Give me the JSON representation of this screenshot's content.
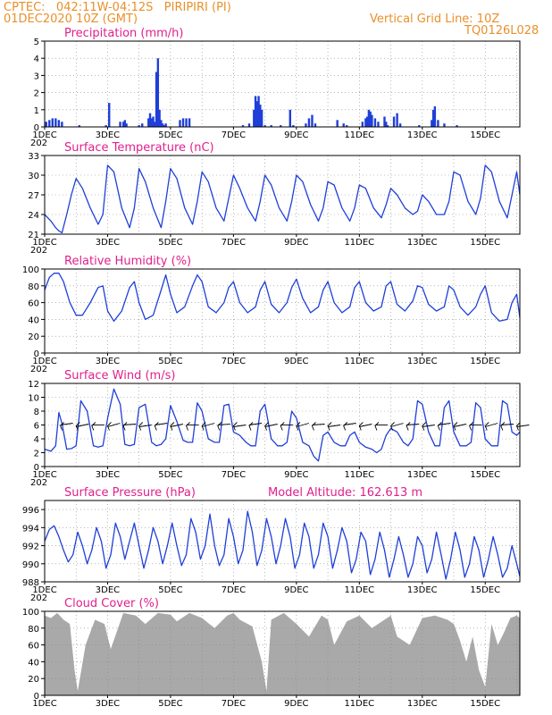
{
  "header": {
    "line1": "CPTEC:   042:11W-04:12S   PIRIPIRI (PI)",
    "line2": "01DEC2020 10Z (GMT)",
    "grid_label": "Vertical Grid Line: 10Z",
    "code": "TQ0126L028"
  },
  "colors": {
    "line": "#1f3fd8",
    "cloud": "#a9a9a9",
    "title": "#e0208c",
    "header": "#e8902a"
  },
  "x_axis": {
    "range_days": [
      0,
      15.1
    ],
    "ticks": [
      {
        "day": 0,
        "label": "1DEC"
      },
      {
        "day": 2,
        "label": "3DEC"
      },
      {
        "day": 4,
        "label": "5DEC"
      },
      {
        "day": 6,
        "label": "7DEC"
      },
      {
        "day": 8,
        "label": "9DEC"
      },
      {
        "day": 10,
        "label": "11DEC"
      },
      {
        "day": 12,
        "label": "13DEC"
      },
      {
        "day": 14,
        "label": "15DEC"
      }
    ],
    "year_stub": "202"
  },
  "chart_data": [
    {
      "type": "bar",
      "title": "Precipitation (mm/h)",
      "ylim": [
        0,
        5
      ],
      "yticks": [
        0,
        1,
        2,
        3,
        4,
        5
      ],
      "x": [
        0.05,
        0.15,
        0.25,
        0.35,
        0.45,
        0.55,
        1.1,
        1.95,
        2.05,
        2.4,
        2.5,
        2.55,
        2.6,
        3.0,
        3.1,
        3.3,
        3.35,
        3.4,
        3.45,
        3.5,
        3.55,
        3.6,
        3.65,
        3.7,
        3.75,
        3.8,
        3.85,
        4.3,
        4.4,
        4.5,
        4.6,
        6.3,
        6.5,
        6.65,
        6.7,
        6.75,
        6.8,
        6.85,
        6.9,
        7.0,
        7.2,
        7.5,
        7.8,
        7.9,
        8.3,
        8.4,
        8.5,
        8.6,
        9.3,
        9.5,
        9.6,
        10.1,
        10.2,
        10.25,
        10.3,
        10.35,
        10.4,
        10.5,
        10.6,
        10.8,
        10.85,
        10.9,
        11.1,
        11.2,
        11.3,
        11.9,
        12.3,
        12.35,
        12.4,
        12.5,
        12.7,
        13.1
      ],
      "values": [
        0.3,
        0.4,
        0.5,
        0.5,
        0.4,
        0.3,
        0.1,
        0.1,
        1.4,
        0.3,
        0.3,
        0.4,
        0.2,
        0.1,
        0.2,
        0.5,
        0.8,
        0.5,
        0.6,
        0.3,
        3.2,
        4.0,
        1.0,
        0.4,
        0.2,
        0.1,
        0.2,
        0.4,
        0.5,
        0.5,
        0.5,
        0.1,
        0.2,
        1.0,
        1.8,
        1.5,
        1.8,
        1.3,
        1.0,
        0.1,
        0.1,
        0.1,
        1.0,
        0.1,
        0.2,
        0.5,
        0.7,
        0.2,
        0.4,
        0.2,
        0.1,
        0.3,
        0.5,
        0.6,
        1.0,
        0.9,
        0.7,
        0.5,
        0.3,
        0.6,
        0.3,
        0.1,
        0.6,
        0.8,
        0.2,
        0.1,
        0.4,
        1.0,
        1.2,
        0.4,
        0.2,
        0.1
      ],
      "xlabel": "",
      "ylabel": ""
    },
    {
      "type": "line",
      "title": "Surface Temperature (nC)",
      "ylim": [
        21,
        33
      ],
      "yticks": [
        21,
        24,
        27,
        30,
        33
      ],
      "x": [
        0,
        0.2,
        0.35,
        0.45,
        0.55,
        0.7,
        0.85,
        1.0,
        1.2,
        1.45,
        1.7,
        1.85,
        2.0,
        2.2,
        2.45,
        2.7,
        2.85,
        3.0,
        3.2,
        3.45,
        3.7,
        3.85,
        4.0,
        4.2,
        4.45,
        4.7,
        4.85,
        5.0,
        5.2,
        5.45,
        5.7,
        5.85,
        6.0,
        6.2,
        6.45,
        6.7,
        6.85,
        7.0,
        7.2,
        7.45,
        7.7,
        7.85,
        8.0,
        8.2,
        8.45,
        8.7,
        8.85,
        9.0,
        9.2,
        9.45,
        9.7,
        9.85,
        10.0,
        10.2,
        10.45,
        10.7,
        10.85,
        11.0,
        11.2,
        11.45,
        11.7,
        11.85,
        12.0,
        12.2,
        12.45,
        12.7,
        12.85,
        13.0,
        13.2,
        13.45,
        13.7,
        13.85,
        14.0,
        14.2,
        14.45,
        14.7,
        14.85,
        15.0,
        15.1
      ],
      "values": [
        24,
        23,
        22,
        21.5,
        21.2,
        24,
        27,
        29.5,
        28,
        25,
        22.5,
        24,
        31.5,
        30.5,
        25,
        22,
        25,
        31,
        29,
        25,
        22,
        26,
        31,
        29.5,
        25,
        22.5,
        26,
        30.5,
        29,
        25,
        23,
        26.5,
        30,
        28,
        25,
        23,
        26,
        30,
        28.5,
        25,
        23,
        26,
        30,
        29,
        25.5,
        23,
        25,
        29,
        28.5,
        25,
        23,
        25,
        28.5,
        28,
        25,
        23.5,
        25.5,
        28,
        27,
        25,
        24,
        24.5,
        27,
        26,
        24,
        24,
        26,
        30.5,
        30,
        26,
        24,
        26.5,
        31.5,
        30.5,
        26,
        23.5,
        27,
        30.5,
        27
      ],
      "xlabel": "",
      "ylabel": ""
    },
    {
      "type": "line",
      "title": "Relative Humidity (%)",
      "ylim": [
        0,
        100
      ],
      "yticks": [
        0,
        20,
        40,
        60,
        80,
        100
      ],
      "x": [
        0,
        0.15,
        0.3,
        0.45,
        0.6,
        0.8,
        1.0,
        1.2,
        1.45,
        1.7,
        1.85,
        2.0,
        2.2,
        2.45,
        2.7,
        2.85,
        3.0,
        3.2,
        3.45,
        3.7,
        3.85,
        4.0,
        4.2,
        4.45,
        4.7,
        4.85,
        5.0,
        5.2,
        5.45,
        5.7,
        5.85,
        6.0,
        6.2,
        6.45,
        6.7,
        6.85,
        7.0,
        7.2,
        7.45,
        7.7,
        7.85,
        8.0,
        8.2,
        8.45,
        8.7,
        8.85,
        9.0,
        9.2,
        9.45,
        9.7,
        9.85,
        10.0,
        10.2,
        10.45,
        10.7,
        10.85,
        11.0,
        11.2,
        11.45,
        11.7,
        11.85,
        12.0,
        12.2,
        12.45,
        12.7,
        12.85,
        13.0,
        13.2,
        13.45,
        13.7,
        13.85,
        14.0,
        14.2,
        14.45,
        14.7,
        14.85,
        15.0,
        15.1
      ],
      "values": [
        75,
        90,
        95,
        95,
        85,
        60,
        45,
        45,
        60,
        78,
        80,
        50,
        38,
        50,
        78,
        85,
        60,
        40,
        45,
        75,
        93,
        70,
        48,
        55,
        80,
        93,
        85,
        55,
        48,
        60,
        78,
        85,
        60,
        48,
        55,
        75,
        85,
        58,
        48,
        60,
        78,
        88,
        65,
        48,
        55,
        75,
        85,
        60,
        48,
        55,
        78,
        85,
        60,
        50,
        55,
        80,
        85,
        58,
        50,
        62,
        80,
        78,
        58,
        50,
        55,
        80,
        75,
        55,
        45,
        55,
        70,
        80,
        48,
        38,
        40,
        60,
        70,
        42
      ],
      "xlabel": "",
      "ylabel": ""
    },
    {
      "type": "line",
      "title": "Surface Wind (m/s)",
      "ylim": [
        0,
        12
      ],
      "yticks": [
        0,
        2,
        4,
        6,
        8,
        10,
        12
      ],
      "x": [
        0,
        0.2,
        0.35,
        0.45,
        0.55,
        0.7,
        0.85,
        1.0,
        1.15,
        1.35,
        1.55,
        1.7,
        1.85,
        2.0,
        2.2,
        2.4,
        2.55,
        2.7,
        2.85,
        3.0,
        3.2,
        3.4,
        3.55,
        3.7,
        3.85,
        4.0,
        4.2,
        4.4,
        4.55,
        4.7,
        4.85,
        5.0,
        5.2,
        5.4,
        5.55,
        5.7,
        5.85,
        6.0,
        6.2,
        6.4,
        6.55,
        6.7,
        6.85,
        7.0,
        7.2,
        7.4,
        7.55,
        7.7,
        7.85,
        8.0,
        8.2,
        8.4,
        8.55,
        8.7,
        8.85,
        9.0,
        9.2,
        9.4,
        9.55,
        9.7,
        9.85,
        10.0,
        10.2,
        10.4,
        10.55,
        10.7,
        10.85,
        11.0,
        11.2,
        11.4,
        11.55,
        11.7,
        11.85,
        12.0,
        12.2,
        12.4,
        12.55,
        12.7,
        12.85,
        13.0,
        13.2,
        13.4,
        13.55,
        13.7,
        13.85,
        14.0,
        14.2,
        14.4,
        14.55,
        14.7,
        14.85,
        15.0,
        15.1
      ],
      "values": [
        2.5,
        2.2,
        3.0,
        7.8,
        6.2,
        2.5,
        2.6,
        3.0,
        9.5,
        8.0,
        3.0,
        2.8,
        3.0,
        7.0,
        11.2,
        9.0,
        3.2,
        3.0,
        3.2,
        8.5,
        9.0,
        3.5,
        3.0,
        3.2,
        4.0,
        8.8,
        6.5,
        3.8,
        3.5,
        3.5,
        9.2,
        8.0,
        4.0,
        3.5,
        3.5,
        8.8,
        9.0,
        5.0,
        4.5,
        3.5,
        3.0,
        3.0,
        8.0,
        9.0,
        4.0,
        3.0,
        3.0,
        3.5,
        8.0,
        7.0,
        3.5,
        3.0,
        1.5,
        0.8,
        4.5,
        5.0,
        3.5,
        3.0,
        3.0,
        4.5,
        5.0,
        3.5,
        2.8,
        2.5,
        2.0,
        2.5,
        4.5,
        5.5,
        5.0,
        3.5,
        3.0,
        4.0,
        9.5,
        9.0,
        5.0,
        3.0,
        3.0,
        8.5,
        9.5,
        5.0,
        3.0,
        3.0,
        3.5,
        9.2,
        8.5,
        4.0,
        3.0,
        3.0,
        9.5,
        9.0,
        5.0,
        4.5,
        5.0
      ],
      "arrows_day": [
        0.5,
        1.0,
        1.5,
        2.0,
        2.5,
        3.0,
        3.5,
        4.0,
        4.5,
        5.0,
        5.5,
        6.0,
        6.5,
        7.0,
        7.5,
        8.0,
        8.5,
        9.0,
        9.5,
        10.0,
        10.5,
        11.0,
        11.5,
        12.0,
        12.5,
        13.0,
        13.5,
        14.0,
        14.5,
        15.0
      ],
      "xlabel": "",
      "ylabel": ""
    },
    {
      "type": "line",
      "title": "Surface Pressure (hPa)",
      "altitude_label": "Model Altitude: 162.613 m",
      "ylim": [
        988,
        997
      ],
      "yticks": [
        988,
        990,
        992,
        994,
        996
      ],
      "x": [
        0,
        0.15,
        0.3,
        0.45,
        0.6,
        0.75,
        0.9,
        1.05,
        1.2,
        1.35,
        1.5,
        1.65,
        1.8,
        1.95,
        2.1,
        2.25,
        2.4,
        2.55,
        2.7,
        2.85,
        3.0,
        3.15,
        3.3,
        3.45,
        3.6,
        3.75,
        3.9,
        4.05,
        4.2,
        4.35,
        4.5,
        4.65,
        4.8,
        4.95,
        5.1,
        5.25,
        5.4,
        5.55,
        5.7,
        5.85,
        6.0,
        6.15,
        6.3,
        6.45,
        6.6,
        6.75,
        6.9,
        7.05,
        7.2,
        7.35,
        7.5,
        7.65,
        7.8,
        7.95,
        8.1,
        8.25,
        8.4,
        8.55,
        8.7,
        8.85,
        9.0,
        9.15,
        9.3,
        9.45,
        9.6,
        9.75,
        9.9,
        10.05,
        10.2,
        10.35,
        10.5,
        10.65,
        10.8,
        10.95,
        11.1,
        11.25,
        11.4,
        11.55,
        11.7,
        11.85,
        12.0,
        12.15,
        12.3,
        12.45,
        12.6,
        12.75,
        12.9,
        13.05,
        13.2,
        13.35,
        13.5,
        13.65,
        13.8,
        13.95,
        14.1,
        14.25,
        14.4,
        14.55,
        14.7,
        14.85,
        15.0,
        15.1
      ],
      "values": [
        992.5,
        993.8,
        994.2,
        993.0,
        991.5,
        990.2,
        991.0,
        993.5,
        992.0,
        990.0,
        991.5,
        994.0,
        992.5,
        989.5,
        991.0,
        994.5,
        993.0,
        990.5,
        992.5,
        994.5,
        992.0,
        989.5,
        991.5,
        994.0,
        992.5,
        990.0,
        992.0,
        994.5,
        992.0,
        989.8,
        991.0,
        995.0,
        993.5,
        990.5,
        992.0,
        995.5,
        992.0,
        989.8,
        991.0,
        995.0,
        993.0,
        990.0,
        991.5,
        995.8,
        993.5,
        989.8,
        991.5,
        995.0,
        993.0,
        990.0,
        992.0,
        995.0,
        993.0,
        989.5,
        991.0,
        994.5,
        993.0,
        989.5,
        991.0,
        994.5,
        993.0,
        989.5,
        991.5,
        994.0,
        992.5,
        989.0,
        990.5,
        993.5,
        992.5,
        988.8,
        990.5,
        993.5,
        991.5,
        988.5,
        990.5,
        993.0,
        991.0,
        988.5,
        990.0,
        993.0,
        992.0,
        989.0,
        990.5,
        993.5,
        991.0,
        988.3,
        990.5,
        993.5,
        991.5,
        988.5,
        990.0,
        993.0,
        991.5,
        988.5,
        990.5,
        993.0,
        991.0,
        988.5,
        989.5,
        992.0,
        990.0,
        988.6
      ],
      "xlabel": "",
      "ylabel": ""
    },
    {
      "type": "area",
      "title": "Cloud Cover (%)",
      "ylim": [
        0,
        100
      ],
      "yticks": [
        0,
        20,
        40,
        60,
        80,
        100
      ],
      "x": [
        0,
        0.2,
        0.4,
        0.6,
        0.8,
        0.95,
        1.05,
        1.3,
        1.6,
        1.9,
        2.1,
        2.5,
        2.9,
        3.2,
        3.6,
        4.0,
        4.2,
        4.6,
        5.0,
        5.4,
        5.8,
        6.0,
        6.2,
        6.6,
        6.9,
        7.05,
        7.2,
        7.6,
        8.0,
        8.4,
        8.8,
        9.0,
        9.2,
        9.6,
        10.0,
        10.4,
        10.8,
        11.0,
        11.2,
        11.6,
        12.0,
        12.4,
        12.8,
        13.0,
        13.2,
        13.4,
        13.6,
        13.8,
        14.0,
        14.2,
        14.4,
        14.6,
        14.8,
        15.0,
        15.1
      ],
      "values": [
        95,
        92,
        98,
        90,
        85,
        30,
        5,
        60,
        90,
        85,
        55,
        98,
        95,
        85,
        98,
        96,
        88,
        98,
        92,
        80,
        95,
        98,
        90,
        82,
        40,
        5,
        90,
        98,
        85,
        70,
        95,
        90,
        60,
        88,
        95,
        80,
        90,
        95,
        70,
        60,
        92,
        95,
        90,
        85,
        65,
        40,
        70,
        30,
        10,
        85,
        60,
        75,
        92,
        95,
        92
      ],
      "xlabel": "",
      "ylabel": ""
    }
  ]
}
